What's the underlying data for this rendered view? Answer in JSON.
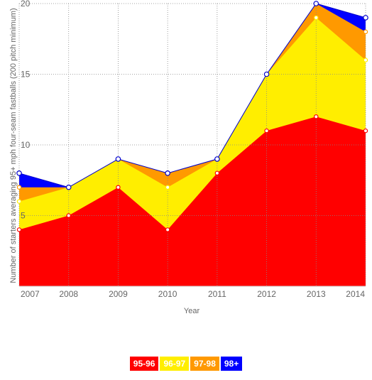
{
  "chart_data": {
    "type": "area",
    "stacked": true,
    "title": "",
    "xlabel": "Year",
    "ylabel": "Number of starters averaging 95+ mph four-seam fastballs (200 pitch minimum)",
    "categories": [
      "2007",
      "2008",
      "2009",
      "2010",
      "2011",
      "2012",
      "2013",
      "2014"
    ],
    "ylim": [
      0,
      20
    ],
    "yticks": [
      "5",
      "10",
      "15",
      "20"
    ],
    "grid": true,
    "legend_position": "bottom",
    "series": [
      {
        "name": "95-96",
        "color": "#ff0000",
        "values": [
          4,
          5,
          7,
          4,
          8,
          11,
          12,
          11
        ]
      },
      {
        "name": "96-97",
        "color": "#ffee00",
        "values": [
          2,
          2,
          2,
          3,
          1,
          4,
          7,
          5
        ]
      },
      {
        "name": "97-98",
        "color": "#ff9900",
        "values": [
          1,
          0,
          0,
          1,
          0,
          0,
          1,
          2
        ]
      },
      {
        "name": "98+",
        "color": "#0000ff",
        "values": [
          1,
          0,
          0,
          0,
          0,
          0,
          0,
          1
        ]
      }
    ]
  }
}
